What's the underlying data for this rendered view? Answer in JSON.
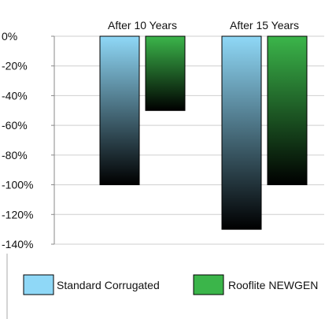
{
  "chart_data": {
    "type": "bar",
    "categories": [
      "After 10 Years",
      "After 15 Years"
    ],
    "series": [
      {
        "name": "Standard Corrugated",
        "values": [
          -100,
          -130
        ],
        "color": "#8fd8f7"
      },
      {
        "name": "Rooflite NEWGEN",
        "values": [
          -50,
          -100
        ],
        "color": "#3bb54a"
      }
    ],
    "y_ticks": [
      "0%",
      "-20%",
      "-40%",
      "-60%",
      "-80%",
      "-100%",
      "-120%",
      "-140%"
    ],
    "ylim": [
      -140,
      0
    ],
    "title": "",
    "xlabel": "",
    "ylabel": "",
    "grid": true,
    "legend_position": "bottom",
    "category_label_position": "top",
    "bar_fill": "vertical gradient from series color at 0% to black at bar end"
  }
}
